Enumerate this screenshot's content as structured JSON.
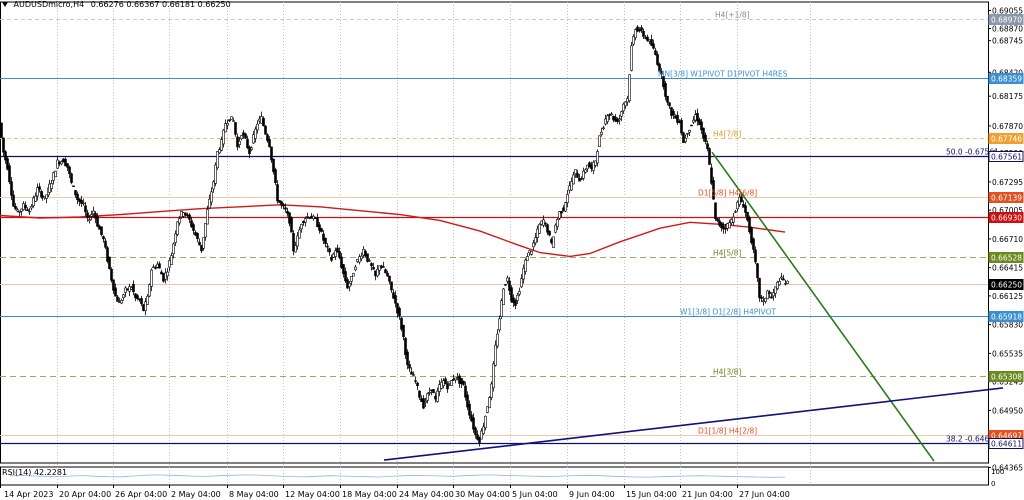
{
  "header": {
    "symbol": "AUDUSDmicro,H4",
    "ohlc": "0.66276 0.66367 0.66181 0.66250"
  },
  "rsi": {
    "label": "RSI(14) 42.2281",
    "scale": [
      "100",
      "0"
    ]
  },
  "chart_data": {
    "type": "candlestick",
    "price_range": [
      0.6441,
      0.6908
    ],
    "price_ticks": [
      "0.69055",
      "0.68870",
      "0.68745",
      "0.68420",
      "0.68175",
      "0.67870",
      "0.67590",
      "0.67295",
      "0.67005",
      "0.66710",
      "0.66415",
      "0.66125",
      "0.65830",
      "0.65535",
      "0.65245",
      "0.64950",
      "0.64655",
      "0.64365"
    ],
    "x_labels": [
      "14 Apr 2023",
      "20 Apr 04:00",
      "26 Apr 04:00",
      "2 May 04:00",
      "8 May 04:00",
      "12 May 04:00",
      "18 May 04:00",
      "24 May 04:00",
      "30 May 04:00",
      "5 Jun 04:00",
      "9 Jun 04:00",
      "15 Jun 04:00",
      "21 Jun 04:00",
      "27 Jun 04:00"
    ],
    "path_points": [
      [
        0,
        0.679
      ],
      [
        4,
        0.676
      ],
      [
        8,
        0.6745
      ],
      [
        14,
        0.6705
      ],
      [
        18,
        0.6698
      ],
      [
        24,
        0.6705
      ],
      [
        30,
        0.67
      ],
      [
        38,
        0.6722
      ],
      [
        45,
        0.6712
      ],
      [
        52,
        0.673
      ],
      [
        58,
        0.675
      ],
      [
        64,
        0.6752
      ],
      [
        68,
        0.6745
      ],
      [
        72,
        0.6728
      ],
      [
        78,
        0.6712
      ],
      [
        84,
        0.6705
      ],
      [
        88,
        0.669
      ],
      [
        94,
        0.67
      ],
      [
        98,
        0.6686
      ],
      [
        104,
        0.667
      ],
      [
        108,
        0.665
      ],
      [
        112,
        0.663
      ],
      [
        116,
        0.6612
      ],
      [
        120,
        0.6605
      ],
      [
        126,
        0.6618
      ],
      [
        132,
        0.6622
      ],
      [
        136,
        0.661
      ],
      [
        140,
        0.6608
      ],
      [
        144,
        0.6598
      ],
      [
        148,
        0.661
      ],
      [
        152,
        0.664
      ],
      [
        158,
        0.6645
      ],
      [
        164,
        0.663
      ],
      [
        168,
        0.664
      ],
      [
        172,
        0.6655
      ],
      [
        178,
        0.669
      ],
      [
        184,
        0.67
      ],
      [
        190,
        0.669
      ],
      [
        196,
        0.6675
      ],
      [
        202,
        0.666
      ],
      [
        208,
        0.67
      ],
      [
        214,
        0.673
      ],
      [
        218,
        0.676
      ],
      [
        222,
        0.677
      ],
      [
        226,
        0.679
      ],
      [
        230,
        0.6795
      ],
      [
        234,
        0.6792
      ],
      [
        238,
        0.6765
      ],
      [
        242,
        0.678
      ],
      [
        246,
        0.6772
      ],
      [
        250,
        0.676
      ],
      [
        254,
        0.6775
      ],
      [
        258,
        0.679
      ],
      [
        262,
        0.6795
      ],
      [
        266,
        0.678
      ],
      [
        270,
        0.6768
      ],
      [
        274,
        0.674
      ],
      [
        278,
        0.6712
      ],
      [
        282,
        0.6705
      ],
      [
        286,
        0.67
      ],
      [
        290,
        0.669
      ],
      [
        294,
        0.666
      ],
      [
        298,
        0.6672
      ],
      [
        302,
        0.6688
      ],
      [
        306,
        0.6693
      ],
      [
        310,
        0.6695
      ],
      [
        316,
        0.669
      ],
      [
        320,
        0.6682
      ],
      [
        324,
        0.667
      ],
      [
        328,
        0.666
      ],
      [
        332,
        0.665
      ],
      [
        336,
        0.666
      ],
      [
        340,
        0.6652
      ],
      [
        344,
        0.6635
      ],
      [
        348,
        0.6622
      ],
      [
        352,
        0.663
      ],
      [
        356,
        0.6645
      ],
      [
        360,
        0.6652
      ],
      [
        364,
        0.666
      ],
      [
        368,
        0.665
      ],
      [
        372,
        0.6642
      ],
      [
        376,
        0.6632
      ],
      [
        380,
        0.6645
      ],
      [
        384,
        0.664
      ],
      [
        388,
        0.6632
      ],
      [
        392,
        0.6618
      ],
      [
        396,
        0.6605
      ],
      [
        400,
        0.659
      ],
      [
        404,
        0.657
      ],
      [
        408,
        0.654
      ],
      [
        412,
        0.6532
      ],
      [
        416,
        0.6525
      ],
      [
        420,
        0.651
      ],
      [
        424,
        0.65
      ],
      [
        428,
        0.651
      ],
      [
        432,
        0.6518
      ],
      [
        436,
        0.6505
      ],
      [
        440,
        0.652
      ],
      [
        444,
        0.6525
      ],
      [
        448,
        0.652
      ],
      [
        452,
        0.6525
      ],
      [
        456,
        0.653
      ],
      [
        460,
        0.6525
      ],
      [
        464,
        0.652
      ],
      [
        468,
        0.65
      ],
      [
        472,
        0.6485
      ],
      [
        476,
        0.647
      ],
      [
        480,
        0.6465
      ],
      [
        484,
        0.648
      ],
      [
        488,
        0.65
      ],
      [
        492,
        0.652
      ],
      [
        496,
        0.656
      ],
      [
        500,
        0.659
      ],
      [
        504,
        0.6622
      ],
      [
        508,
        0.663
      ],
      [
        512,
        0.661
      ],
      [
        516,
        0.6605
      ],
      [
        520,
        0.662
      ],
      [
        524,
        0.664
      ],
      [
        528,
        0.6655
      ],
      [
        532,
        0.666
      ],
      [
        536,
        0.6672
      ],
      [
        540,
        0.6685
      ],
      [
        544,
        0.669
      ],
      [
        548,
        0.668
      ],
      [
        552,
        0.6665
      ],
      [
        556,
        0.6685
      ],
      [
        560,
        0.6698
      ],
      [
        564,
        0.6702
      ],
      [
        568,
        0.6718
      ],
      [
        572,
        0.673
      ],
      [
        576,
        0.674
      ],
      [
        580,
        0.6732
      ],
      [
        584,
        0.6738
      ],
      [
        588,
        0.6748
      ],
      [
        592,
        0.6742
      ],
      [
        596,
        0.6752
      ],
      [
        600,
        0.6775
      ],
      [
        604,
        0.6788
      ],
      [
        608,
        0.68
      ],
      [
        612,
        0.6798
      ],
      [
        616,
        0.6792
      ],
      [
        620,
        0.6795
      ],
      [
        624,
        0.681
      ],
      [
        628,
        0.6815
      ],
      [
        632,
        0.6868
      ],
      [
        636,
        0.6888
      ],
      [
        640,
        0.6885
      ],
      [
        644,
        0.688
      ],
      [
        648,
        0.6876
      ],
      [
        652,
        0.687
      ],
      [
        656,
        0.686
      ],
      [
        660,
        0.6845
      ],
      [
        664,
        0.683
      ],
      [
        668,
        0.681
      ],
      [
        672,
        0.68
      ],
      [
        676,
        0.6795
      ],
      [
        680,
        0.6792
      ],
      [
        684,
        0.677
      ],
      [
        688,
        0.6782
      ],
      [
        692,
        0.6788
      ],
      [
        696,
        0.6798
      ],
      [
        700,
        0.679
      ],
      [
        704,
        0.6775
      ],
      [
        708,
        0.6762
      ],
      [
        712,
        0.673
      ],
      [
        716,
        0.669
      ],
      [
        720,
        0.6686
      ],
      [
        724,
        0.6682
      ],
      [
        728,
        0.6685
      ],
      [
        732,
        0.669
      ],
      [
        736,
        0.6702
      ],
      [
        740,
        0.6712
      ],
      [
        744,
        0.6706
      ],
      [
        748,
        0.669
      ],
      [
        752,
        0.667
      ],
      [
        756,
        0.6645
      ],
      [
        760,
        0.6612
      ],
      [
        764,
        0.6605
      ],
      [
        768,
        0.6618
      ],
      [
        772,
        0.661
      ],
      [
        776,
        0.662
      ],
      [
        780,
        0.663
      ],
      [
        784,
        0.6628
      ],
      [
        788,
        0.6625
      ]
    ],
    "ma_points": [
      [
        0,
        0.6695
      ],
      [
        40,
        0.66925
      ],
      [
        80,
        0.66935
      ],
      [
        120,
        0.6696
      ],
      [
        160,
        0.6699
      ],
      [
        200,
        0.6702
      ],
      [
        240,
        0.6704
      ],
      [
        280,
        0.6706
      ],
      [
        320,
        0.6704
      ],
      [
        360,
        0.67
      ],
      [
        400,
        0.6696
      ],
      [
        440,
        0.669
      ],
      [
        480,
        0.6679
      ],
      [
        520,
        0.6664
      ],
      [
        540,
        0.6657
      ],
      [
        570,
        0.6653
      ],
      [
        590,
        0.6656
      ],
      [
        620,
        0.6668
      ],
      [
        660,
        0.6682
      ],
      [
        690,
        0.6688
      ],
      [
        720,
        0.6686
      ],
      [
        750,
        0.6683
      ],
      [
        785,
        0.6678
      ]
    ],
    "levels": [
      {
        "name": "H4[+1/8]",
        "price": 0.6897,
        "color": "#c8c8c8",
        "dash": "4,3",
        "label_x": 715,
        "label_color": "#8a8a8a",
        "tag_bg": "#8a97a8",
        "tag": "0.68970"
      },
      {
        "name": "MN[3/8] W1PIVOT D1PIVOT H4RES",
        "price": 0.68359,
        "color": "#3b8fd1",
        "dash": "",
        "label_x": 658,
        "label_color": "#3b8fd1",
        "tag_bg": "#3b8fd1",
        "tag": "0.68359"
      },
      {
        "name": "H4[7/8]",
        "price": 0.67746,
        "color": "#f0c070",
        "dash": "4,3",
        "label_x": 713,
        "label_color": "#e09a30",
        "tag_bg": "#f0a030",
        "tag": "0.67746"
      },
      {
        "name": "50.0 -0.67561",
        "price": 0.67561,
        "color": "#101060",
        "dash": "",
        "label_x": 946,
        "label_color": "#101060",
        "tag_bg": "#ffffff",
        "tag": "0.67561",
        "tag_fg": "#101060",
        "tag_border": "#101060"
      },
      {
        "name": "D1[5/8] H4[6/8]",
        "price": 0.67139,
        "color": "#f3c7a8",
        "dash": "",
        "label_x": 698,
        "label_color": "#e05020",
        "tag_bg": "#e05020",
        "tag": "0.67139"
      },
      {
        "name": "",
        "price": 0.6693,
        "color": "#cc1010",
        "dash": "",
        "label_x": 0,
        "label_color": "#cc1010",
        "tag_bg": "#cc1010",
        "tag": "0.66930"
      },
      {
        "name": "H4[5/8]",
        "price": 0.66528,
        "color": "#9aa86a",
        "dash": "6,4",
        "label_x": 713,
        "label_color": "#6a8a20",
        "tag_bg": "#6a8a20",
        "tag": "0.66528"
      },
      {
        "name": "",
        "price": 0.6625,
        "color": "#f0c0b0",
        "dash": "",
        "label_x": 0,
        "label_color": "#000",
        "tag_bg": "#000000",
        "tag": "0.66250"
      },
      {
        "name": "W1[3/8] D1[2/8] H4PIVOT",
        "price": 0.65918,
        "color": "#3b8fd1",
        "dash": "",
        "label_x": 680,
        "label_color": "#3b8fd1",
        "tag_bg": "#3b8fd1",
        "tag": "0.65918"
      },
      {
        "name": "H4[3/8]",
        "price": 0.65308,
        "color": "#9aa86a",
        "dash": "6,4",
        "label_x": 713,
        "label_color": "#6a8a20",
        "tag_bg": "#6a8a20",
        "tag": "0.65308"
      },
      {
        "name": "D1[1/8] H4[2/8]",
        "price": 0.64697,
        "color": "#f3c7a8",
        "dash": "",
        "label_x": 698,
        "label_color": "#e05020",
        "tag_bg": "#e05020",
        "tag": "0.64697"
      },
      {
        "name": "38.2 -0.64611",
        "price": 0.64611,
        "color": "#101060",
        "dash": "",
        "label_x": 946,
        "label_color": "#101060",
        "tag_bg": "#ffffff",
        "tag": "0.64611",
        "tag_fg": "#101060",
        "tag_border": "#101060"
      }
    ],
    "trendlines": [
      {
        "name": "descending-trendline",
        "color": "#2a7a1a",
        "points": [
          [
            712,
            0.676
          ],
          [
            934,
            0.6443
          ]
        ]
      },
      {
        "name": "ascending-trendline",
        "color": "#101080",
        "points": [
          [
            384,
            0.6444
          ],
          [
            1003,
            0.6518
          ]
        ]
      }
    ],
    "rsi": [
      52,
      55,
      50,
      48,
      46,
      50,
      53,
      48,
      45,
      44,
      50,
      56,
      58,
      55,
      52,
      49,
      47,
      52,
      55,
      58,
      57,
      53,
      49,
      46,
      44,
      48,
      52,
      50,
      47,
      45,
      43,
      47,
      52,
      55,
      53,
      50,
      48,
      52,
      56,
      58,
      55,
      53,
      50,
      48,
      46,
      50,
      53,
      55,
      52,
      48,
      45,
      43,
      42,
      45,
      48,
      50,
      52,
      50,
      48,
      46,
      44,
      42,
      41,
      42
    ],
    "colors": {
      "up": "#000000",
      "grid": "#c0c0c0",
      "ma": "#d01818"
    }
  }
}
